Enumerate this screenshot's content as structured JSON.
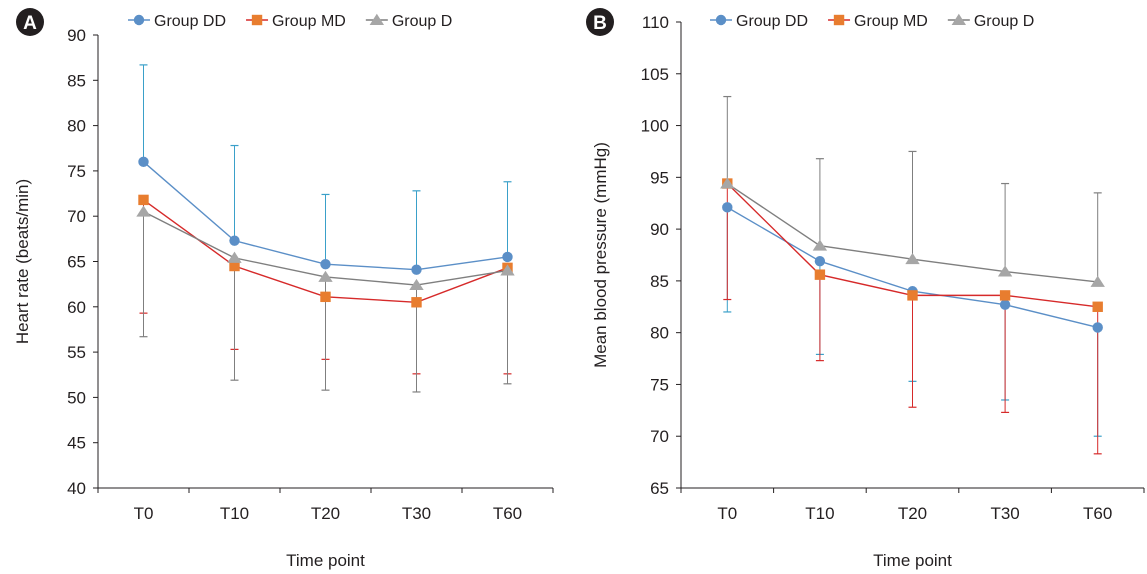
{
  "chart_data": [
    {
      "type": "line",
      "panel_label": "A",
      "title": "",
      "xlabel": "Time point",
      "ylabel": "Heart rate (beats/min)",
      "categories": [
        "T0",
        "T10",
        "T20",
        "T30",
        "T60"
      ],
      "ylim": [
        40,
        90
      ],
      "yticks": [
        40,
        45,
        50,
        55,
        60,
        65,
        70,
        75,
        80,
        85,
        90
      ],
      "grid": false,
      "legend": "top",
      "series": [
        {
          "name": "Group DD",
          "color": "#5b8fc7",
          "marker": "circle",
          "values": [
            76.0,
            67.3,
            64.7,
            64.1,
            65.5
          ],
          "err_upper": [
            86.7,
            77.8,
            72.4,
            72.8,
            73.8
          ],
          "err_lower": [
            null,
            null,
            null,
            null,
            null
          ]
        },
        {
          "name": "Group MD",
          "color": "#e87d2f",
          "line_color": "#d62a2a",
          "marker": "square",
          "values": [
            71.8,
            64.5,
            61.1,
            60.5,
            64.3
          ],
          "err_upper": [
            null,
            null,
            null,
            null,
            null
          ],
          "err_lower": [
            59.3,
            55.3,
            54.2,
            52.6,
            52.6
          ]
        },
        {
          "name": "Group D",
          "color": "#a6a6a6",
          "line_color": "#7f7f7f",
          "marker": "triangle",
          "values": [
            70.5,
            65.4,
            63.3,
            62.4,
            64.0
          ],
          "err_upper": [
            null,
            null,
            null,
            null,
            null
          ],
          "err_lower": [
            56.7,
            51.9,
            50.8,
            50.6,
            51.5
          ]
        }
      ]
    },
    {
      "type": "line",
      "panel_label": "B",
      "title": "",
      "xlabel": "Time point",
      "ylabel": "Mean blood pressure (mmHg)",
      "categories": [
        "T0",
        "T10",
        "T20",
        "T30",
        "T60"
      ],
      "ylim": [
        65,
        110
      ],
      "yticks": [
        65,
        70,
        75,
        80,
        85,
        90,
        95,
        100,
        105,
        110
      ],
      "grid": false,
      "legend": "top",
      "series": [
        {
          "name": "Group DD",
          "color": "#5b8fc7",
          "marker": "circle",
          "values": [
            92.1,
            86.9,
            84.0,
            82.7,
            80.5
          ],
          "err_upper": [
            null,
            null,
            null,
            null,
            null
          ],
          "err_lower": [
            82.0,
            77.9,
            75.3,
            73.5,
            70.0
          ]
        },
        {
          "name": "Group MD",
          "color": "#e87d2f",
          "line_color": "#d62a2a",
          "marker": "square",
          "values": [
            94.4,
            85.6,
            83.6,
            83.6,
            82.5
          ],
          "err_upper": [
            null,
            null,
            null,
            null,
            null
          ],
          "err_lower": [
            83.2,
            77.3,
            72.8,
            72.3,
            68.3
          ]
        },
        {
          "name": "Group D",
          "color": "#a6a6a6",
          "line_color": "#7f7f7f",
          "marker": "triangle",
          "values": [
            94.4,
            88.4,
            87.1,
            85.9,
            84.9
          ],
          "err_upper": [
            102.8,
            96.8,
            97.5,
            94.4,
            93.5
          ],
          "err_lower": [
            null,
            null,
            null,
            null,
            null
          ]
        }
      ]
    }
  ]
}
